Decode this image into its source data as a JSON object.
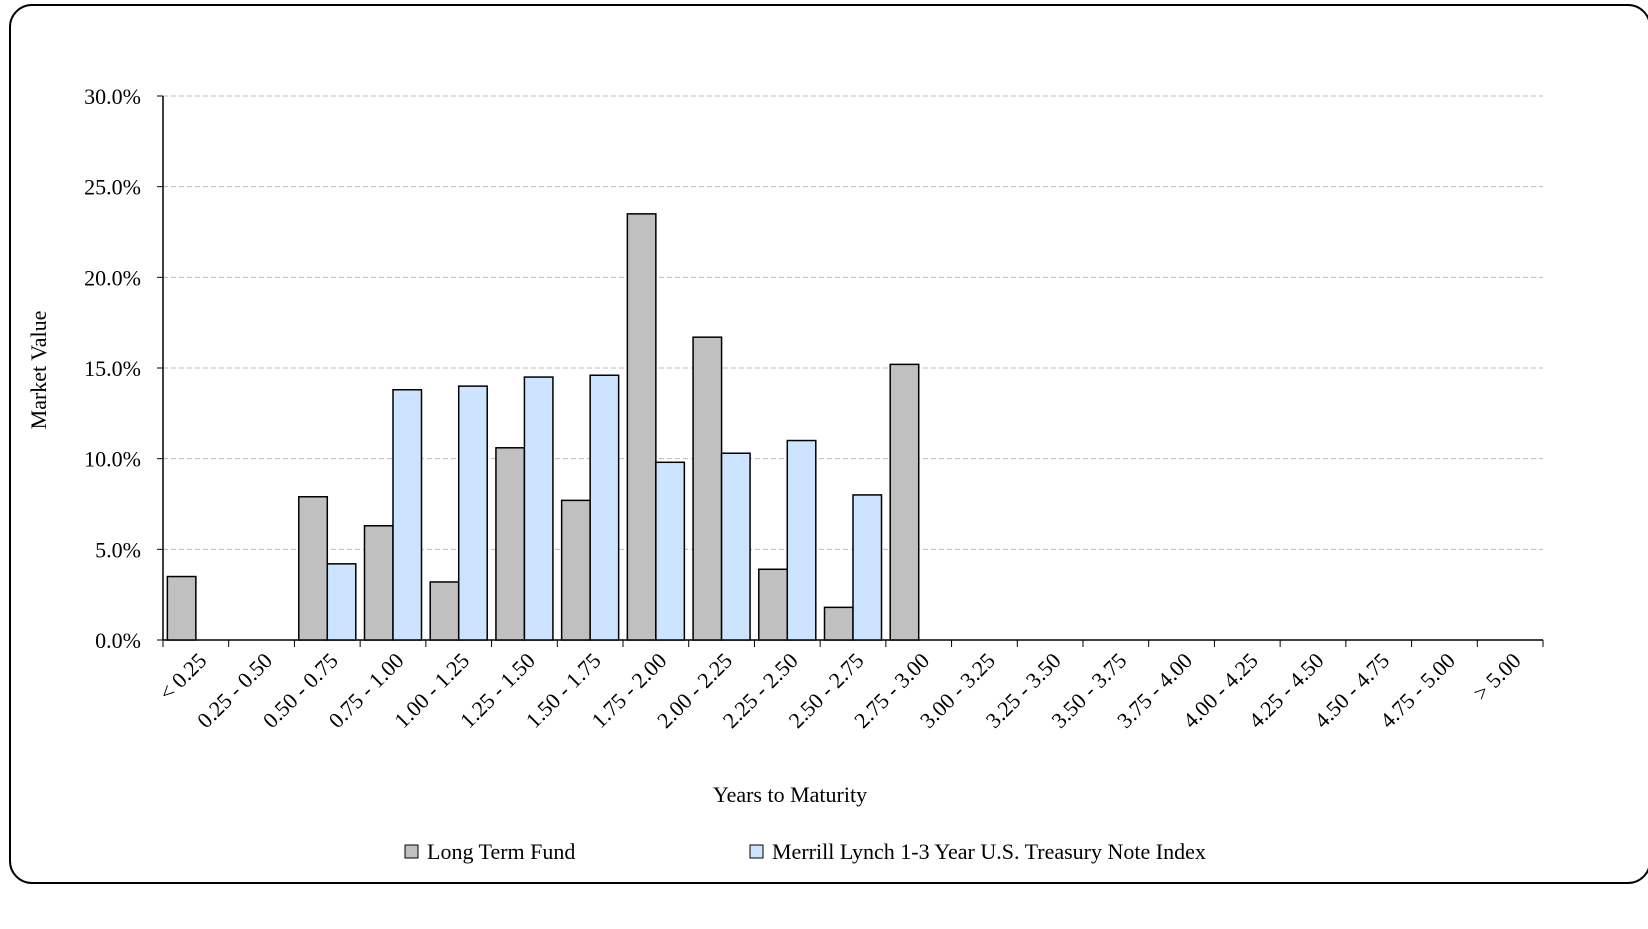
{
  "chart_data": {
    "type": "bar",
    "x_label": "Years to Maturity",
    "y_label": "Market Value",
    "categories": [
      "< 0.25",
      "0.25 - 0.50",
      "0.50 - 0.75",
      "0.75 - 1.00",
      "1.00 - 1.25",
      "1.25 - 1.50",
      "1.50 - 1.75",
      "1.75 - 2.00",
      "2.00 - 2.25",
      "2.25 - 2.50",
      "2.50 - 2.75",
      "2.75 - 3.00",
      "3.00 - 3.25",
      "3.25 - 3.50",
      "3.50 - 3.75",
      "3.75 - 4.00",
      "4.00 - 4.25",
      "4.25 - 4.50",
      "4.50 - 4.75",
      "4.75 - 5.00",
      "> 5.00"
    ],
    "series": [
      {
        "name": "Long Term Fund",
        "color": "#c0c0c0",
        "values": [
          3.5,
          0,
          7.9,
          6.3,
          3.2,
          10.6,
          7.7,
          23.5,
          16.7,
          3.9,
          1.8,
          15.2,
          0,
          0,
          0,
          0,
          0,
          0,
          0,
          0,
          0
        ]
      },
      {
        "name": "Merrill Lynch 1-3 Year U.S. Treasury Note Index",
        "color": "#cce4ff",
        "values": [
          0,
          0,
          4.2,
          13.8,
          14.0,
          14.5,
          14.6,
          9.8,
          10.3,
          11.0,
          8.0,
          0,
          0,
          0,
          0,
          0,
          0,
          0,
          0,
          0,
          0
        ]
      }
    ],
    "ylim": [
      0,
      30
    ],
    "yticks": [
      {
        "value": 0,
        "label": "0.0%"
      },
      {
        "value": 5,
        "label": "5.0%"
      },
      {
        "value": 10,
        "label": "10.0%"
      },
      {
        "value": 15,
        "label": "15.0%"
      },
      {
        "value": 20,
        "label": "20.0%"
      },
      {
        "value": 25,
        "label": "25.0%"
      },
      {
        "value": 30,
        "label": "30.0%"
      }
    ],
    "grid": true,
    "legend": "bottom"
  }
}
